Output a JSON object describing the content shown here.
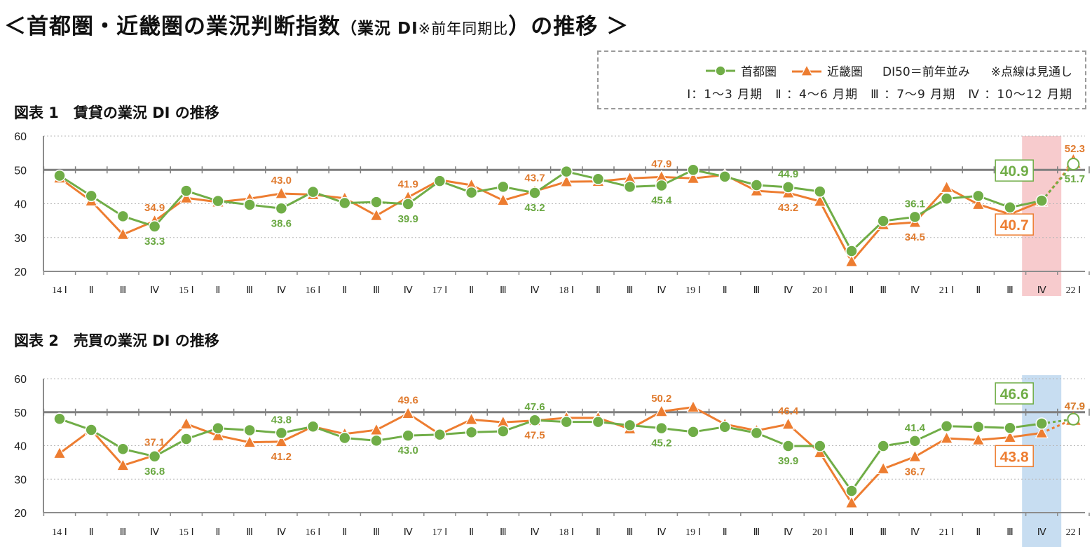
{
  "page": {
    "title_main": "＜首都圏・近畿圏の業況判断指数",
    "title_sub": "（業況 DI",
    "title_note": "※前年同期比",
    "title_close": "）の推移 ＞"
  },
  "legend": {
    "tokyo": "首都圏",
    "kinki": "近畿圏",
    "di50": "DI50＝前年並み",
    "dotted": "※点線は見通し",
    "quarters": "Ⅰ：1～3 月期　Ⅱ ：4～6 月期　Ⅲ ：7～9 月期　Ⅳ ：10～12 月期"
  },
  "colors": {
    "tokyo": "#70ad47",
    "kinki": "#ed7d31",
    "grid": "#8c8c8c",
    "highlight1": "#f6c2c4",
    "highlight2": "#bdd7ee"
  },
  "chart_data": [
    {
      "type": "line",
      "title": "図表 1　賃貸の業況 DI の推移",
      "categories": [
        "14 Ⅰ",
        "Ⅱ",
        "Ⅲ",
        "Ⅳ",
        "15 Ⅰ",
        "Ⅱ",
        "Ⅲ",
        "Ⅳ",
        "16 Ⅰ",
        "Ⅱ",
        "Ⅲ",
        "Ⅳ",
        "17 Ⅰ",
        "Ⅱ",
        "Ⅲ",
        "Ⅳ",
        "18 Ⅰ",
        "Ⅱ",
        "Ⅲ",
        "Ⅳ",
        "19 Ⅰ",
        "Ⅱ",
        "Ⅲ",
        "Ⅳ",
        "20 Ⅰ",
        "Ⅱ",
        "Ⅲ",
        "Ⅳ",
        "21 Ⅰ",
        "Ⅱ",
        "Ⅲ",
        "Ⅳ",
        "22 Ⅰ"
      ],
      "ylim": [
        20,
        60
      ],
      "yticks": [
        20,
        30,
        40,
        50,
        60
      ],
      "reference_line": 50,
      "highlight_category_index": 31,
      "series": [
        {
          "name": "首都圏",
          "values": [
            48.3,
            42.3,
            36.3,
            33.3,
            43.8,
            40.8,
            39.7,
            38.6,
            43.5,
            40.2,
            40.5,
            39.9,
            46.7,
            43.3,
            45.0,
            43.2,
            49.5,
            47.3,
            45.0,
            45.4,
            50.0,
            48.0,
            45.5,
            44.9,
            43.6,
            26.0,
            34.9,
            36.1,
            41.5,
            42.3,
            38.9,
            40.9,
            51.7
          ],
          "forecast_from_index": 31
        },
        {
          "name": "近畿圏",
          "values": [
            47.6,
            40.8,
            30.9,
            34.9,
            41.7,
            40.5,
            41.5,
            43.0,
            42.7,
            41.6,
            36.5,
            41.9,
            47.0,
            45.5,
            41.0,
            43.7,
            46.5,
            46.6,
            47.5,
            47.9,
            47.5,
            48.5,
            43.8,
            43.2,
            40.7,
            22.9,
            33.8,
            34.5,
            44.8,
            39.8,
            36.9,
            40.7,
            52.3
          ],
          "forecast_from_index": 31
        }
      ],
      "data_labels": [
        {
          "series": 1,
          "index": 3,
          "text": "34.9"
        },
        {
          "series": 0,
          "index": 3,
          "text": "33.3"
        },
        {
          "series": 1,
          "index": 7,
          "text": "43.0"
        },
        {
          "series": 0,
          "index": 7,
          "text": "38.6"
        },
        {
          "series": 1,
          "index": 11,
          "text": "41.9"
        },
        {
          "series": 0,
          "index": 11,
          "text": "39.9"
        },
        {
          "series": 1,
          "index": 15,
          "text": "43.7"
        },
        {
          "series": 0,
          "index": 15,
          "text": "43.2"
        },
        {
          "series": 1,
          "index": 19,
          "text": "47.9"
        },
        {
          "series": 0,
          "index": 19,
          "text": "45.4"
        },
        {
          "series": 0,
          "index": 23,
          "text": "44.9"
        },
        {
          "series": 1,
          "index": 23,
          "text": "43.2"
        },
        {
          "series": 0,
          "index": 27,
          "text": "36.1"
        },
        {
          "series": 1,
          "index": 27,
          "text": "34.5"
        },
        {
          "series": 0,
          "index": 31,
          "text": "40.9",
          "boxed": true
        },
        {
          "series": 1,
          "index": 31,
          "text": "40.7",
          "boxed": true
        },
        {
          "series": 1,
          "index": 32,
          "text": "52.3"
        },
        {
          "series": 0,
          "index": 32,
          "text": "51.7"
        }
      ]
    },
    {
      "type": "line",
      "title": "図表 2　売買の業況 DI の推移",
      "categories": [
        "14 Ⅰ",
        "Ⅱ",
        "Ⅲ",
        "Ⅳ",
        "15 Ⅰ",
        "Ⅱ",
        "Ⅲ",
        "Ⅳ",
        "16 Ⅰ",
        "Ⅱ",
        "Ⅲ",
        "Ⅳ",
        "17 Ⅰ",
        "Ⅱ",
        "Ⅲ",
        "Ⅳ",
        "18 Ⅰ",
        "Ⅱ",
        "Ⅲ",
        "Ⅳ",
        "19 Ⅰ",
        "Ⅱ",
        "Ⅲ",
        "Ⅳ",
        "20 Ⅰ",
        "Ⅱ",
        "Ⅲ",
        "Ⅳ",
        "21 Ⅰ",
        "Ⅱ",
        "Ⅲ",
        "Ⅳ",
        "22 Ⅰ"
      ],
      "ylim": [
        20,
        60
      ],
      "yticks": [
        20,
        30,
        40,
        50,
        60
      ],
      "reference_line": 50,
      "highlight_category_index": 31,
      "series": [
        {
          "name": "首都圏",
          "values": [
            48.0,
            44.7,
            39.0,
            36.8,
            42.0,
            45.2,
            44.6,
            43.8,
            45.7,
            42.3,
            41.5,
            43.0,
            43.3,
            44.0,
            44.3,
            47.6,
            47.1,
            47.1,
            46.1,
            45.2,
            44.1,
            45.6,
            43.8,
            39.9,
            39.9,
            26.5,
            39.9,
            41.4,
            45.8,
            45.6,
            45.3,
            46.6,
            47.9
          ],
          "forecast_from_index": 31
        },
        {
          "name": "近畿圏",
          "values": [
            37.7,
            44.7,
            34.1,
            37.1,
            46.5,
            43.0,
            41.0,
            41.2,
            45.7,
            43.5,
            44.7,
            49.6,
            43.4,
            47.8,
            47.0,
            47.5,
            48.3,
            48.3,
            45.0,
            50.2,
            51.5,
            46.4,
            44.5,
            46.4,
            37.9,
            22.9,
            33.1,
            36.7,
            42.2,
            41.7,
            42.5,
            43.8,
            47.9
          ],
          "forecast_from_index": 31
        }
      ],
      "data_labels": [
        {
          "series": 1,
          "index": 3,
          "text": "37.1"
        },
        {
          "series": 0,
          "index": 3,
          "text": "36.8"
        },
        {
          "series": 0,
          "index": 7,
          "text": "43.8"
        },
        {
          "series": 1,
          "index": 7,
          "text": "41.2"
        },
        {
          "series": 1,
          "index": 11,
          "text": "49.6"
        },
        {
          "series": 0,
          "index": 11,
          "text": "43.0"
        },
        {
          "series": 0,
          "index": 15,
          "text": "47.6"
        },
        {
          "series": 1,
          "index": 15,
          "text": "47.5"
        },
        {
          "series": 1,
          "index": 19,
          "text": "50.2"
        },
        {
          "series": 0,
          "index": 19,
          "text": "45.2"
        },
        {
          "series": 1,
          "index": 23,
          "text": "46.4"
        },
        {
          "series": 0,
          "index": 23,
          "text": "39.9"
        },
        {
          "series": 0,
          "index": 27,
          "text": "41.4"
        },
        {
          "series": 1,
          "index": 27,
          "text": "36.7"
        },
        {
          "series": 0,
          "index": 31,
          "text": "46.6",
          "boxed": true
        },
        {
          "series": 1,
          "index": 31,
          "text": "43.8",
          "boxed": true
        },
        {
          "series": 0,
          "index": 32,
          "text": "47.9"
        },
        {
          "series": 1,
          "index": 32,
          "text": "47.9"
        }
      ]
    }
  ]
}
